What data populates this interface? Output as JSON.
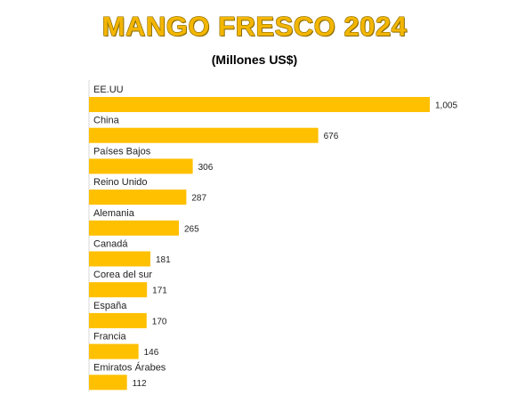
{
  "chart_data": {
    "type": "bar",
    "orientation": "horizontal",
    "title": "MANGO FRESCO 2024",
    "subtitle": "(Millones US$)",
    "categories": [
      "EE.UU",
      "China",
      "Países Bajos",
      "Reino Unido",
      "Alemania",
      "Canadá",
      "Corea del sur",
      "España",
      "Francia",
      "Emiratos Árabes"
    ],
    "values": [
      1005,
      676,
      306,
      287,
      265,
      181,
      171,
      170,
      146,
      112
    ],
    "value_labels": [
      "1,005",
      "676",
      "306",
      "287",
      "265",
      "181",
      "171",
      "170",
      "146",
      "112"
    ],
    "xlim": [
      0,
      1005
    ],
    "grid": false,
    "legend": "none",
    "bar_color": "#ffc000"
  }
}
